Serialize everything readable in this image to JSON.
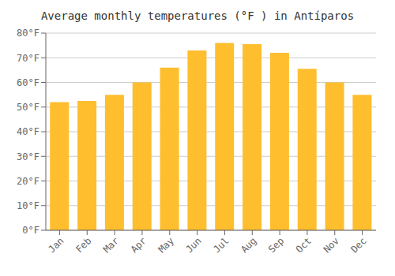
{
  "chart_data": {
    "type": "bar",
    "title": "Average monthly temperatures (°F ) in Antí­paros",
    "categories": [
      "Jan",
      "Feb",
      "Mar",
      "Apr",
      "May",
      "Jun",
      "Jul",
      "Aug",
      "Sep",
      "Oct",
      "Nov",
      "Dec"
    ],
    "values": [
      52,
      52.5,
      55,
      60,
      66,
      73,
      76,
      75.5,
      72,
      65.5,
      60,
      55
    ],
    "color": "#FFBE2E",
    "ylim": [
      0,
      80
    ],
    "yticks": [
      {
        "value": 0,
        "label": "0°F"
      },
      {
        "value": 10,
        "label": "10°F"
      },
      {
        "value": 20,
        "label": "20°F"
      },
      {
        "value": 30,
        "label": "30°F"
      },
      {
        "value": 40,
        "label": "40°F"
      },
      {
        "value": 50,
        "label": "50°F"
      },
      {
        "value": 60,
        "label": "60°F"
      },
      {
        "value": 70,
        "label": "70°F"
      },
      {
        "value": 80,
        "label": "80°F"
      }
    ],
    "grid": true
  }
}
